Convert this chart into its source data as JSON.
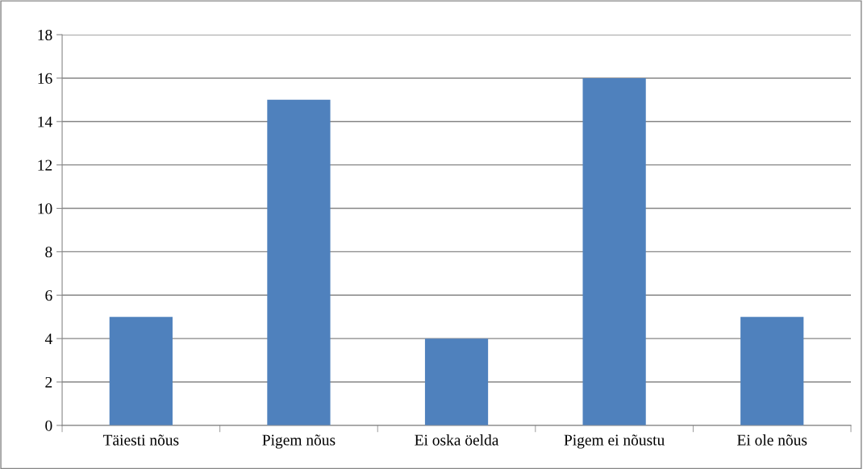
{
  "chart_data": {
    "type": "bar",
    "categories": [
      "Täiesti nõus",
      "Pigem nõus",
      "Ei oska öelda",
      "Pigem ei nõustu",
      "Ei ole nõus"
    ],
    "values": [
      5,
      15,
      4,
      16,
      5
    ],
    "color": "#4f81bd",
    "ylim": [
      0,
      18
    ],
    "yticks": [
      0,
      2,
      4,
      6,
      8,
      10,
      12,
      14,
      16,
      18
    ],
    "grid": "y",
    "legend": false
  }
}
